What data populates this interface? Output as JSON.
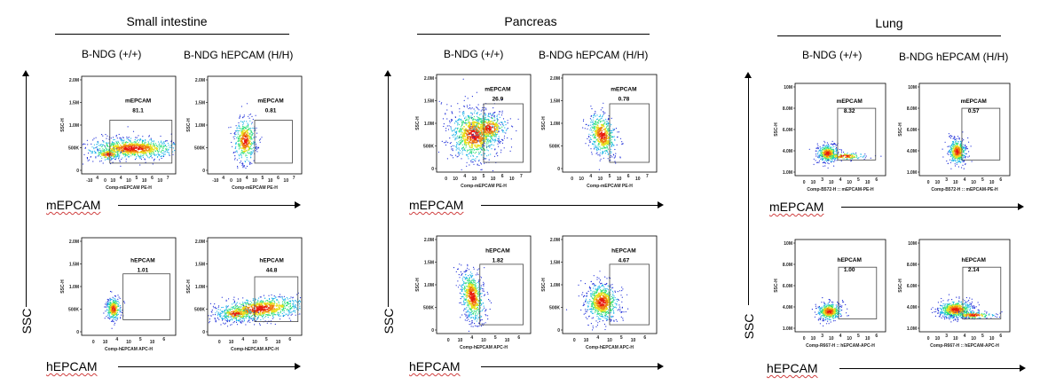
{
  "colors": {
    "gate": "#444444",
    "axis": "#000000",
    "squiggle": "#d04040",
    "density": [
      "#1b2bd8",
      "#19b2e8",
      "#2ee07a",
      "#e8e020",
      "#f07a10",
      "#e81a10"
    ]
  },
  "tissues": [
    {
      "title": "Small intestine",
      "groups": [
        "B-NDG (+/+)",
        "B-NDG hEPCAM (H/H)"
      ],
      "ssc_label": "SSC",
      "m_marker": "mEPCAM",
      "h_marker": "hEPCAM",
      "plots": [
        {
          "gate": "mEPCAM",
          "value": "81.1",
          "x_axis": "Comp-mEPCAM PE-H",
          "y_axis": "SSC-H",
          "y_ticks": [
            "2.0M",
            "1.5M",
            "1.0M",
            "500K",
            "0"
          ],
          "x_ticks": [
            "-10",
            "4",
            "0",
            "10",
            "4",
            "10",
            "5",
            "10",
            "6",
            "10",
            "7"
          ]
        },
        {
          "gate": "mEPCAM",
          "value": "0.81",
          "x_axis": "Comp-mEPCAM PE-H",
          "y_axis": "SSC-H",
          "y_ticks": [
            "2.0M",
            "1.5M",
            "1.0M",
            "500K",
            "0"
          ],
          "x_ticks": [
            "-10",
            "4",
            "0",
            "10",
            "4",
            "10",
            "5",
            "10",
            "6",
            "10",
            "7"
          ]
        },
        {
          "gate": "hEPCAM",
          "value": "1.01",
          "x_axis": "Comp-hEPCAM APC-H",
          "y_axis": "SSC-H",
          "y_ticks": [
            "2.0M",
            "1.5M",
            "1.0M",
            "500K",
            "0"
          ],
          "x_ticks": [
            "0",
            "10",
            "4",
            "10",
            "5",
            "10",
            "6"
          ]
        },
        {
          "gate": "hEPCAM",
          "value": "44.8",
          "x_axis": "Comp-hEPCAM APC-H",
          "y_axis": "SSC-H",
          "y_ticks": [
            "2.0M",
            "1.5M",
            "1.0M",
            "500K",
            "0"
          ],
          "x_ticks": [
            "0",
            "10",
            "4",
            "10",
            "5",
            "10",
            "6"
          ]
        }
      ]
    },
    {
      "title": "Pancreas",
      "groups": [
        "B-NDG (+/+)",
        "B-NDG hEPCAM (H/H)"
      ],
      "ssc_label": "SSC",
      "m_marker": "mEPCAM",
      "h_marker": "hEPCAM",
      "plots": [
        {
          "gate": "mEPCAM",
          "value": "26.9",
          "x_axis": "Comp-mEPCAM PE-H",
          "y_axis": "SSC-H",
          "y_ticks": [
            "2.0M",
            "1.5M",
            "1.0M",
            "500K",
            "0"
          ],
          "x_ticks": [
            "0",
            "10",
            "4",
            "10",
            "5",
            "10",
            "6",
            "10",
            "7"
          ]
        },
        {
          "gate": "mEPCAM",
          "value": "0.78",
          "x_axis": "Comp-mEPCAM PE-H",
          "y_axis": "SSC-H",
          "y_ticks": [
            "2.0M",
            "1.5M",
            "1.0M",
            "500K",
            "0"
          ],
          "x_ticks": [
            "0",
            "10",
            "4",
            "10",
            "5",
            "10",
            "6",
            "10",
            "7"
          ]
        },
        {
          "gate": "hEPCAM",
          "value": "1.82",
          "x_axis": "Comp-hEPCAM APC-H",
          "y_axis": "SSC-H",
          "y_ticks": [
            "2.0M",
            "1.5M",
            "1.0M",
            "500K",
            "0"
          ],
          "x_ticks": [
            "0",
            "10",
            "4",
            "10",
            "5",
            "10",
            "6"
          ]
        },
        {
          "gate": "hEPCAM",
          "value": "4.67",
          "x_axis": "Comp-hEPCAM APC-H",
          "y_axis": "SSC-H",
          "y_ticks": [
            "2.0M",
            "1.5M",
            "1.0M",
            "500K",
            "0"
          ],
          "x_ticks": [
            "0",
            "10",
            "4",
            "10",
            "5",
            "10",
            "6"
          ]
        }
      ]
    },
    {
      "title": "Lung",
      "groups": [
        "B-NDG (+/+)",
        "B-NDG hEPCAM (H/H)"
      ],
      "ssc_label": "SSC",
      "m_marker": "mEPCAM",
      "h_marker": "hEPCAM",
      "plots": [
        {
          "gate": "mEPCAM",
          "value": "8.32",
          "x_axis": "Comp-B572-H :: mEPCAM-PE-H",
          "y_axis": "SSC-H",
          "y_ticks": [
            "10M",
            "8.0M",
            "6.0M",
            "4.0M",
            "1.0M"
          ],
          "x_ticks": [
            "0",
            "10",
            "3",
            "10",
            "4",
            "10",
            "5",
            "10",
            "6"
          ]
        },
        {
          "gate": "mEPCAM",
          "value": "0.57",
          "x_axis": "Comp-B572-H :: mEPCAM-PE-H",
          "y_axis": "SSC-H",
          "y_ticks": [
            "10M",
            "8.0M",
            "6.0M",
            "4.0M",
            "1.0M"
          ],
          "x_ticks": [
            "0",
            "10",
            "3",
            "10",
            "4",
            "10",
            "5",
            "10",
            "6"
          ]
        },
        {
          "gate": "hEPCAM",
          "value": "1.00",
          "x_axis": "Comp-R667-H :: hEPCAM-APC-H",
          "y_axis": "SSC-H",
          "y_ticks": [
            "10M",
            "8.0M",
            "6.0M",
            "4.0M",
            "1.0M"
          ],
          "x_ticks": [
            "0",
            "10",
            "3",
            "10",
            "4",
            "10",
            "5",
            "10",
            "6"
          ]
        },
        {
          "gate": "hEPCAM",
          "value": "2.14",
          "x_axis": "Comp-R667-H :: hEPCAM-APC-H",
          "y_axis": "SSC-H",
          "y_ticks": [
            "10M",
            "8.0M",
            "6.0M",
            "4.0M",
            "1.0M"
          ],
          "x_ticks": [
            "0",
            "10",
            "3",
            "10",
            "4",
            "10",
            "5",
            "10",
            "6"
          ]
        }
      ]
    }
  ]
}
